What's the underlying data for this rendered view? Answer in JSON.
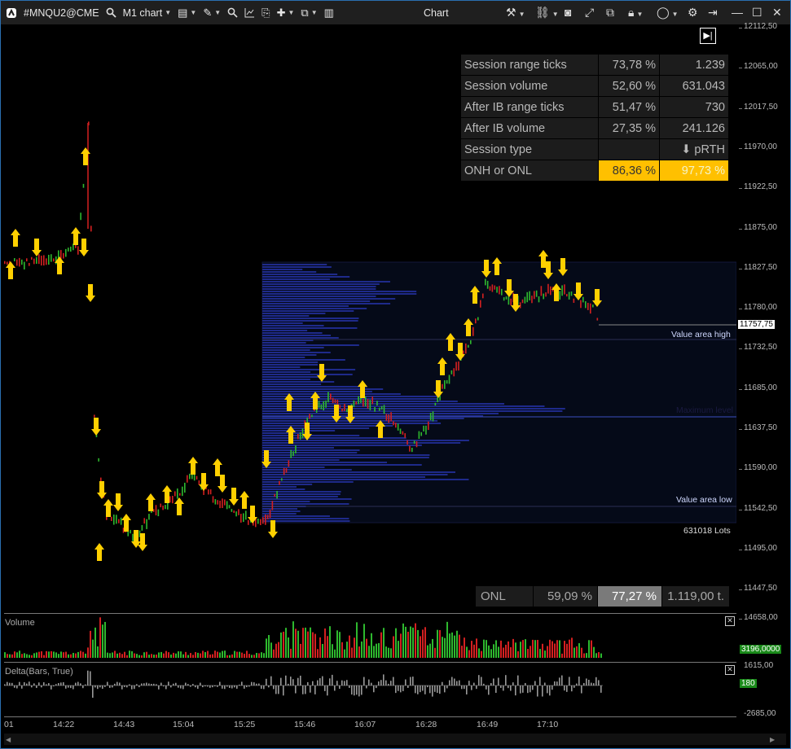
{
  "toolbar": {
    "symbol": "#MNQU2@CME",
    "timeframe": "M1 chart",
    "chart_title": "Chart"
  },
  "stats": [
    {
      "label": "Session range ticks",
      "pct": "73,78 %",
      "val": "1.239"
    },
    {
      "label": "Session volume",
      "pct": "52,60 %",
      "val": "631.043"
    },
    {
      "label": "After IB range ticks",
      "pct": "51,47 %",
      "val": "730"
    },
    {
      "label": "After IB volume",
      "pct": "27,35 %",
      "val": "241.126"
    },
    {
      "label": "Session type",
      "pct": "",
      "val": "⬇ pRTH"
    },
    {
      "label": "ONH or ONL",
      "pct": "86,36 %",
      "val": "97,73 %"
    }
  ],
  "onl_row": {
    "label": "ONL",
    "a": "59,09 %",
    "b": "77,27 %",
    "c": "1.119,00 t."
  },
  "profile": {
    "value_area_high": "Value area high",
    "maximum_level": "Maximum level",
    "value_area_low": "Value area low",
    "lots": "631018 Lots"
  },
  "price_axis": [
    "12112,50",
    "12065,00",
    "12017,50",
    "11970,00",
    "11922,50",
    "11875,00",
    "11827,50",
    "11780,00",
    "11732,50",
    "11685,00",
    "11637,50",
    "11590,00",
    "11542,50",
    "11495,00",
    "11447,50"
  ],
  "last_price": "11757,75",
  "volume_panel": {
    "label": "Volume",
    "top": "14658,00",
    "last": "3196,0000"
  },
  "delta_panel": {
    "label": "Delta(Bars, True)",
    "top": "1615,00",
    "last": "180",
    "bottom": "-2685,00"
  },
  "time_axis": [
    "01",
    "14:22",
    "14:43",
    "15:04",
    "15:25",
    "15:46",
    "16:07",
    "16:28",
    "16:49",
    "17:10"
  ],
  "colors": {
    "up": "#2eb82e",
    "down": "#d42020",
    "arrow": "#ffd000",
    "profile": "#1e2a8a",
    "highlight": "#ffc000"
  }
}
